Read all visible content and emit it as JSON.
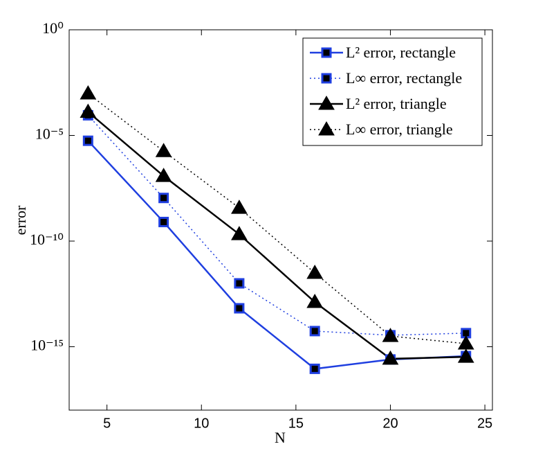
{
  "chart_data": {
    "type": "line",
    "x_label": "N",
    "y_label": "error",
    "x": [
      4,
      8,
      12,
      16,
      20,
      24
    ],
    "xlim": [
      3,
      25.4
    ],
    "xticks": [
      5,
      10,
      15,
      20,
      25
    ],
    "ylim": [
      1e-18,
      1
    ],
    "y_scale": "log",
    "yticks": [
      {
        "value": 1,
        "label": "10⁰"
      },
      {
        "value": 1e-05,
        "label": "10⁻⁵"
      },
      {
        "value": 1e-10,
        "label": "10⁻¹⁰"
      },
      {
        "value": 1e-15,
        "label": "10⁻¹⁵"
      }
    ],
    "grid": false,
    "legend_position": "upper right",
    "series": [
      {
        "name": "L² error, rectangle",
        "color": "#1f3fe0",
        "line_style": "solid",
        "marker": "square",
        "values": [
          5.6e-06,
          8e-10,
          6.6e-14,
          9e-17,
          2.5e-16,
          3.6e-16
        ]
      },
      {
        "name": "L∞ error, rectangle",
        "color": "#1f3fe0",
        "line_style": "dotted",
        "marker": "square",
        "values": [
          9e-05,
          1.1e-08,
          1e-12,
          5.5e-15,
          3.5e-15,
          4.4e-15
        ]
      },
      {
        "name": "L² error, triangle",
        "color": "#000000",
        "line_style": "solid",
        "marker": "triangle",
        "values": [
          0.00013,
          1.2e-07,
          2.1e-10,
          1.3e-13,
          2.7e-16,
          3.3e-16
        ]
      },
      {
        "name": "L∞ error, triangle",
        "color": "#000000",
        "line_style": "dotted",
        "marker": "triangle",
        "values": [
          0.00096,
          1.8e-06,
          3.7e-09,
          3.1e-12,
          3.2e-15,
          1.4e-15
        ]
      }
    ]
  }
}
